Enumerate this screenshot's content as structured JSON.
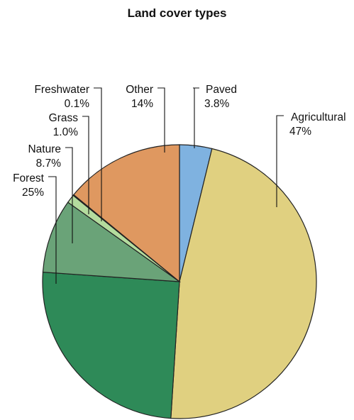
{
  "chart_data": {
    "type": "pie",
    "title": "Land cover types",
    "slices": [
      {
        "label": "Paved",
        "value_label": "3.8%",
        "value": 3.8,
        "color": "#7fb2e0"
      },
      {
        "label": "Agricultural",
        "value_label": "47%",
        "value": 47,
        "color": "#e0d080"
      },
      {
        "label": "Forest",
        "value_label": "25%",
        "value": 25,
        "color": "#2e8a58"
      },
      {
        "label": "Nature",
        "value_label": "8.7%",
        "value": 8.7,
        "color": "#6aa378"
      },
      {
        "label": "Grass",
        "value_label": "1.0%",
        "value": 1.0,
        "color": "#b4dc9e"
      },
      {
        "label": "Freshwater",
        "value_label": "0.1%",
        "value": 0.1,
        "color": "#4f8fd0"
      },
      {
        "label": "Other",
        "value_label": "14%",
        "value": 14,
        "color": "#df9860"
      }
    ],
    "start_angle_deg": 0,
    "direction": "clockwise"
  }
}
